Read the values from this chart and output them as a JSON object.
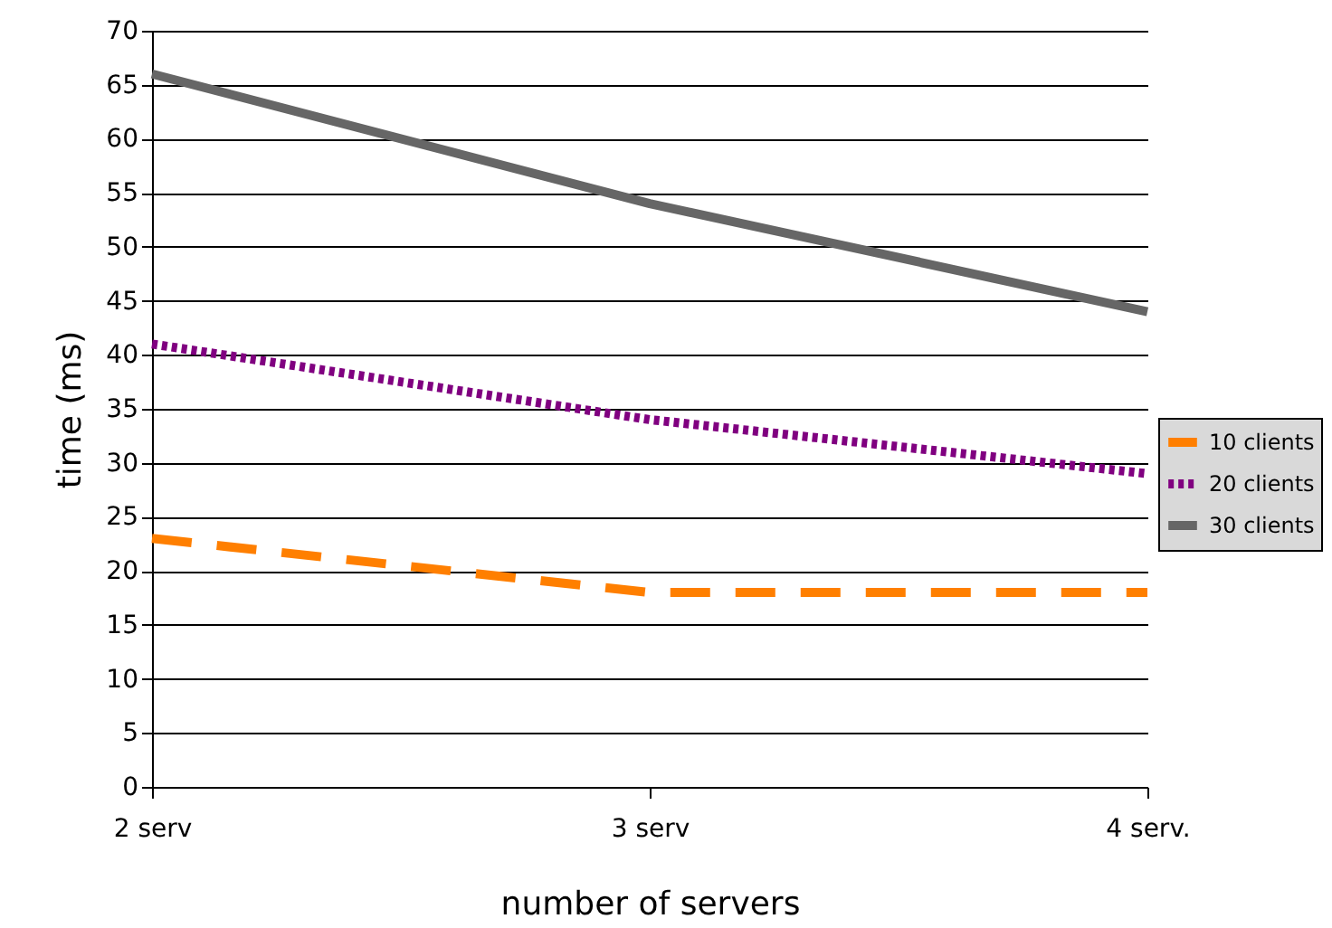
{
  "chart_data": {
    "type": "line",
    "xlabel": "number of servers",
    "ylabel": "time (ms)",
    "categories": [
      "2 serv",
      "3 serv",
      "4 serv."
    ],
    "series": [
      {
        "name": "10 clients",
        "color": "#ff7f00",
        "line_style": "dashed",
        "values": [
          23,
          18,
          18
        ]
      },
      {
        "name": "20 clients",
        "color": "#800080",
        "line_style": "dotted",
        "values": [
          41,
          34,
          29
        ]
      },
      {
        "name": "30 clients",
        "color": "#666666",
        "line_style": "solid",
        "values": [
          66,
          54,
          44
        ]
      }
    ],
    "ylim": [
      0,
      70
    ],
    "yticks": [
      0,
      5,
      10,
      15,
      20,
      25,
      30,
      35,
      40,
      45,
      50,
      55,
      60,
      65,
      70
    ],
    "grid": "y",
    "legend": "right",
    "marker": "none"
  }
}
